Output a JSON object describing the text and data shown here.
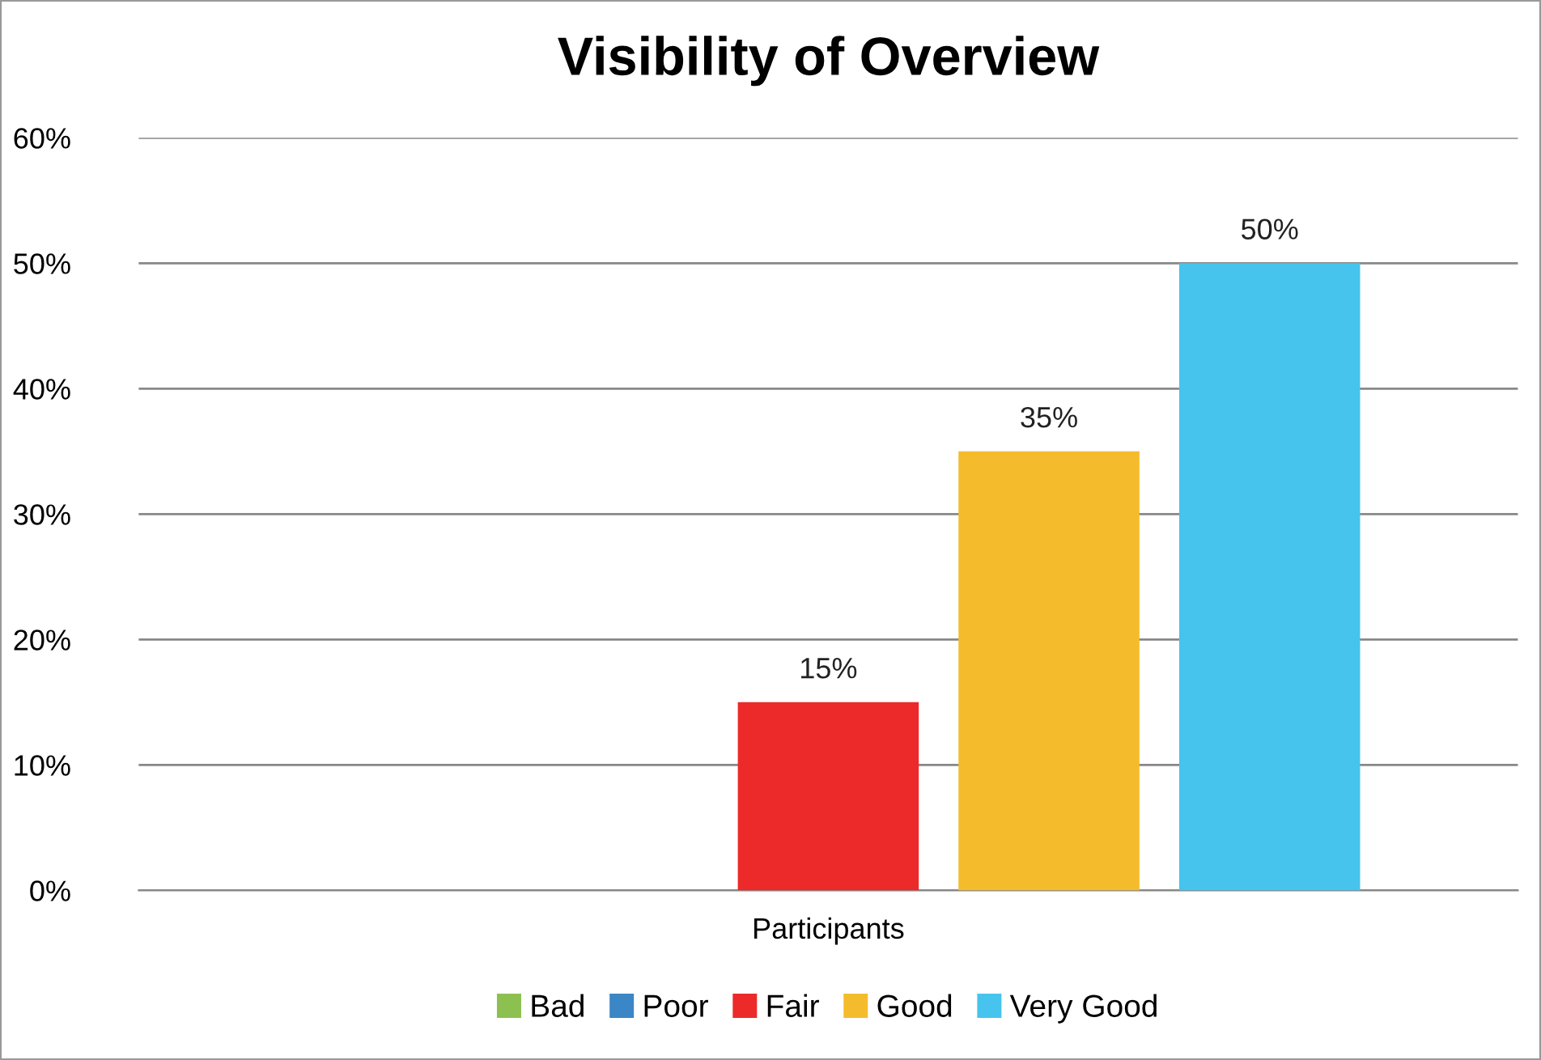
{
  "chart_data": {
    "type": "bar",
    "title": "Visibility of Overview",
    "categories": [
      "Participants"
    ],
    "series": [
      {
        "name": "Bad",
        "color": "#8cc152",
        "values": [
          0
        ],
        "value_labels": [
          null
        ]
      },
      {
        "name": "Poor",
        "color": "#3b86c6",
        "values": [
          0
        ],
        "value_labels": [
          null
        ]
      },
      {
        "name": "Fair",
        "color": "#ec2a2a",
        "values": [
          15
        ],
        "value_labels": [
          "15%"
        ]
      },
      {
        "name": "Good",
        "color": "#f4bc2c",
        "values": [
          35
        ],
        "value_labels": [
          "35%"
        ]
      },
      {
        "name": "Very Good",
        "color": "#46c4ee",
        "values": [
          50
        ],
        "value_labels": [
          "50%"
        ]
      }
    ],
    "ylim": [
      0,
      60
    ],
    "yticks": [
      {
        "value": 0,
        "label": "0%"
      },
      {
        "value": 10,
        "label": "10%"
      },
      {
        "value": 20,
        "label": "20%"
      },
      {
        "value": 30,
        "label": "30%"
      },
      {
        "value": 40,
        "label": "40%"
      },
      {
        "value": 50,
        "label": "50%"
      },
      {
        "value": 60,
        "label": "60%"
      }
    ],
    "grid": "y",
    "legend": "bottom"
  }
}
